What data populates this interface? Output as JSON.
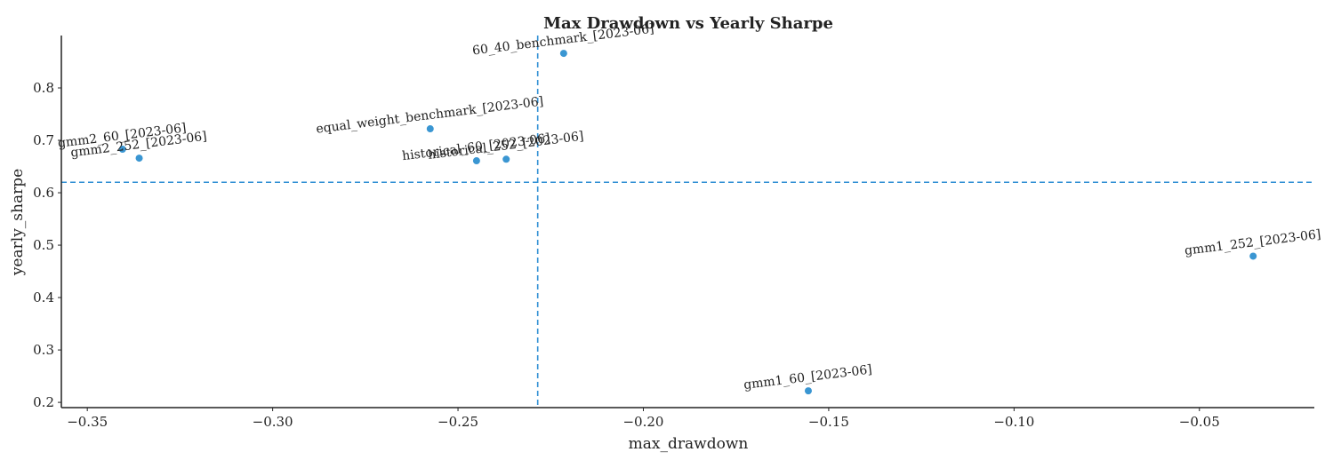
{
  "chart_data": {
    "type": "scatter",
    "title": "Max Drawdown vs Yearly Sharpe",
    "xlabel": "max_drawdown",
    "ylabel": "yearly_sharpe",
    "xlim": [
      -0.357,
      -0.019
    ],
    "ylim": [
      0.19,
      0.9
    ],
    "xticks": [
      -0.35,
      -0.3,
      -0.25,
      -0.2,
      -0.15,
      -0.1,
      -0.05
    ],
    "xtick_labels": [
      "−0.35",
      "−0.30",
      "−0.25",
      "−0.20",
      "−0.15",
      "−0.10",
      "−0.05"
    ],
    "yticks": [
      0.2,
      0.3,
      0.4,
      0.5,
      0.6,
      0.7,
      0.8
    ],
    "ytick_labels": [
      "0.2",
      "0.3",
      "0.4",
      "0.5",
      "0.6",
      "0.7",
      "0.8"
    ],
    "grid": false,
    "point_color": "#3a96d2",
    "reference_line_color": "#2f8fd4",
    "reference_lines": {
      "x": -0.2285,
      "y": 0.62
    },
    "points": [
      {
        "label": "60_40_benchmark_[2023-06]",
        "x": -0.2215,
        "y": 0.866
      },
      {
        "label": "equal_weight_benchmark_[2023-06]",
        "x": -0.2575,
        "y": 0.722
      },
      {
        "label": "gmm2_60_[2023-06]",
        "x": -0.3405,
        "y": 0.683
      },
      {
        "label": "gmm2_252_[2023-06]",
        "x": -0.336,
        "y": 0.666
      },
      {
        "label": "historical_60_[2023-06]",
        "x": -0.245,
        "y": 0.661
      },
      {
        "label": "historical_252_[2023-06]",
        "x": -0.237,
        "y": 0.664
      },
      {
        "label": "gmm1_252_[2023-06]",
        "x": -0.0355,
        "y": 0.479
      },
      {
        "label": "gmm1_60_[2023-06]",
        "x": -0.1555,
        "y": 0.222
      }
    ]
  }
}
